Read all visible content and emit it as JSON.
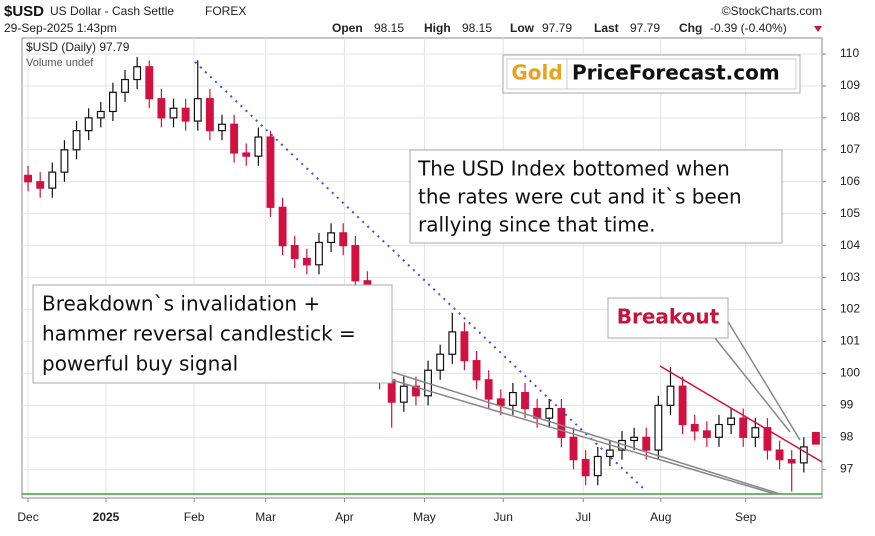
{
  "chart_data": {
    "type": "candlestick",
    "symbol": "$USD",
    "name": "US Dollar - Cash Settle",
    "exchange": "FOREX",
    "source": "©StockCharts.com",
    "timestamp": "29-Sep-2025 1:43pm",
    "quote": {
      "open_label": "Open",
      "open": 98.15,
      "high_label": "High",
      "high": 98.15,
      "low_label": "Low",
      "low": 97.79,
      "last_label": "Last",
      "last": 97.79,
      "chg_label": "Chg",
      "chg": "-0.39 (-0.40%)"
    },
    "legend": [
      "$USD (Daily) 97.79",
      "Volume undef"
    ],
    "up_color": "#111111",
    "down_color": "#d11141",
    "open": [
      106.2,
      106.0,
      105.8,
      106.3,
      107.0,
      107.6,
      108.0,
      108.2,
      108.8,
      109.2,
      109.6,
      108.6,
      108.0,
      108.3,
      107.9,
      108.6,
      107.6,
      107.8,
      106.9,
      106.8,
      107.4,
      105.2,
      104.0,
      103.6,
      103.4,
      104.1,
      104.4,
      104.0,
      102.9,
      101.5,
      99.8,
      99.1,
      99.6,
      99.3,
      100.1,
      100.6,
      101.3,
      100.4,
      99.8,
      99.2,
      99.0,
      99.4,
      98.9,
      98.6,
      98.9,
      98.0,
      97.3,
      96.8,
      97.4,
      97.6,
      97.9,
      98.0,
      97.6,
      99.0,
      99.6,
      98.4,
      98.2,
      98.0,
      98.4,
      98.6,
      98.0,
      98.3,
      97.6,
      97.3,
      97.2,
      98.15
    ],
    "high": [
      106.5,
      106.3,
      106.6,
      107.3,
      107.9,
      108.3,
      108.5,
      109.1,
      109.5,
      109.9,
      109.8,
      108.9,
      108.6,
      108.6,
      109.8,
      108.9,
      108.1,
      108.1,
      107.2,
      107.7,
      107.6,
      105.5,
      104.3,
      103.9,
      104.4,
      104.7,
      104.7,
      104.3,
      103.2,
      101.8,
      100.1,
      99.9,
      99.9,
      100.4,
      100.9,
      101.9,
      101.6,
      100.7,
      100.1,
      99.5,
      99.7,
      99.7,
      99.2,
      99.2,
      99.2,
      98.3,
      97.6,
      97.7,
      97.9,
      98.2,
      98.3,
      98.3,
      99.3,
      100.2,
      99.9,
      98.7,
      98.5,
      98.7,
      98.9,
      98.9,
      98.6,
      98.6,
      97.9,
      97.6,
      98.0,
      98.15
    ],
    "low": [
      105.7,
      105.5,
      105.5,
      106.0,
      106.7,
      107.3,
      107.7,
      107.9,
      108.5,
      108.9,
      108.3,
      107.7,
      107.7,
      107.6,
      107.6,
      107.3,
      107.3,
      106.6,
      106.5,
      106.5,
      104.9,
      103.7,
      103.3,
      103.1,
      103.1,
      103.8,
      103.7,
      102.6,
      101.2,
      99.5,
      98.3,
      98.8,
      99.0,
      99.0,
      99.8,
      100.3,
      100.1,
      99.5,
      98.9,
      98.7,
      98.7,
      98.6,
      98.3,
      98.3,
      97.7,
      97.0,
      96.5,
      96.5,
      97.1,
      97.3,
      97.6,
      97.3,
      97.3,
      98.7,
      98.1,
      97.9,
      97.7,
      97.7,
      98.1,
      97.7,
      97.7,
      97.3,
      97.0,
      96.3,
      96.9,
      97.79
    ],
    "close": [
      106.0,
      105.8,
      106.3,
      107.0,
      107.6,
      108.0,
      108.2,
      108.8,
      109.2,
      109.6,
      108.6,
      108.0,
      108.3,
      107.9,
      108.6,
      107.6,
      107.8,
      106.9,
      106.8,
      107.4,
      105.2,
      104.0,
      103.6,
      103.4,
      104.1,
      104.4,
      104.0,
      102.9,
      101.5,
      99.8,
      99.1,
      99.6,
      99.3,
      100.1,
      100.6,
      101.3,
      100.4,
      99.8,
      99.2,
      99.0,
      99.4,
      98.9,
      98.6,
      98.9,
      98.0,
      97.3,
      96.8,
      97.4,
      97.6,
      97.9,
      98.0,
      97.6,
      99.0,
      99.6,
      98.4,
      98.2,
      98.0,
      98.4,
      98.6,
      98.0,
      98.3,
      97.6,
      97.3,
      97.2,
      97.7,
      97.79
    ],
    "xlim": [
      0,
      66
    ],
    "xticks": [
      {
        "value": 0.5,
        "label": "Dec"
      },
      {
        "value": 6.93,
        "label": "2025"
      },
      {
        "value": 14.2,
        "label": "Feb"
      },
      {
        "value": 20.1,
        "label": "Mar"
      },
      {
        "value": 26.6,
        "label": "Apr"
      },
      {
        "value": 33.2,
        "label": "May"
      },
      {
        "value": 39.7,
        "label": "Jun"
      },
      {
        "value": 46.3,
        "label": "Jul"
      },
      {
        "value": 52.7,
        "label": "Aug"
      },
      {
        "value": 59.7,
        "label": "Sep"
      }
    ],
    "ylim": [
      96.1,
      110.5
    ],
    "yticks": [
      97,
      98,
      99,
      100,
      101,
      102,
      103,
      104,
      105,
      106,
      107,
      108,
      109,
      110
    ],
    "grid": true,
    "annotations": {
      "brand": [
        "Gold",
        "PriceForecast.com"
      ],
      "comment": [
        "The USD Index bottomed when",
        "the rates were cut and it`s been",
        "rallying since that time."
      ],
      "signal": [
        "Breakdown`s invalidation +",
        "hammer reversal candlestick =",
        "powerful buy signal"
      ],
      "breakout": "Breakout"
    }
  }
}
